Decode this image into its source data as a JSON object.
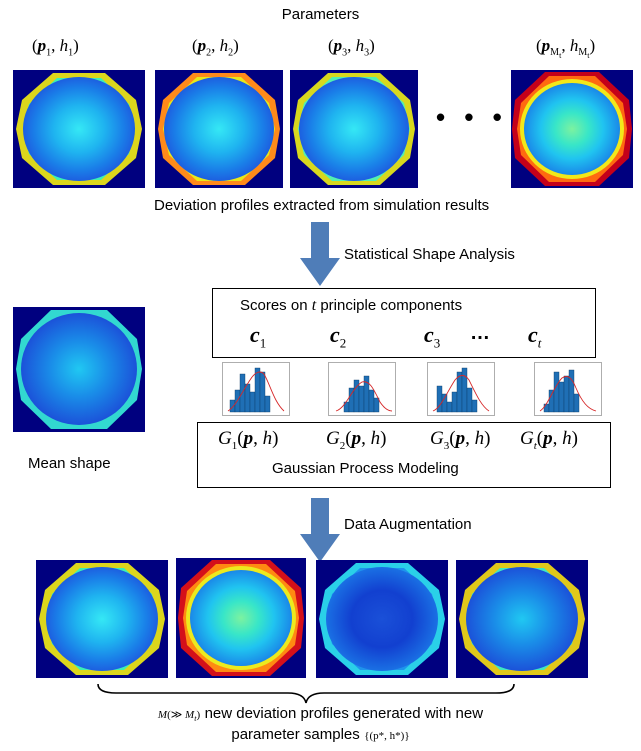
{
  "title": "Parameters",
  "param_labels": [
    {
      "vec": "p",
      "sub": "1",
      "h": "h",
      "hsub": "1"
    },
    {
      "vec": "p",
      "sub": "2",
      "h": "h",
      "hsub": "2"
    },
    {
      "vec": "p",
      "sub": "3",
      "h": "h",
      "hsub": "3"
    },
    {
      "vec": "p",
      "sub": "M",
      "subsub": "t",
      "h": "h",
      "hsub": "M",
      "hsubsub": "t"
    }
  ],
  "ellipsis": "• • •",
  "deviation_caption": "Deviation profiles extracted from simulation results",
  "ssa_label": "Statistical Shape Analysis",
  "scores_title_pre": "Scores on ",
  "scores_title_var": "t",
  "scores_title_post": " principle components",
  "scores": [
    {
      "c": "c",
      "sub": "1"
    },
    {
      "c": "c",
      "sub": "2"
    },
    {
      "c": "c",
      "sub": "3"
    },
    {
      "c": "c",
      "sub": "t"
    }
  ],
  "scores_ellipsis": "…",
  "gp_functions": [
    {
      "g": "G",
      "sub": "1"
    },
    {
      "g": "G",
      "sub": "2"
    },
    {
      "g": "G",
      "sub": "3"
    },
    {
      "g": "G",
      "sub": "t"
    }
  ],
  "gp_title": "Gaussian Process Modeling",
  "mean_shape_label": "Mean shape",
  "augmentation_label": "Data Augmentation",
  "bottom_line1": "new deviation profiles generated with new",
  "bottom_line2": "parameter samples",
  "bottom_math_m": "M",
  "bottom_math_gg": "(≫ ",
  "bottom_math_mt": "M",
  "bottom_math_t": "t",
  "bottom_math_set": "{(p*, h*)}",
  "colors": {
    "arrow": "#4f7db8",
    "frame": "#00007f",
    "hist_bar": "#1f6fb5",
    "hist_curve": "#d62728"
  }
}
